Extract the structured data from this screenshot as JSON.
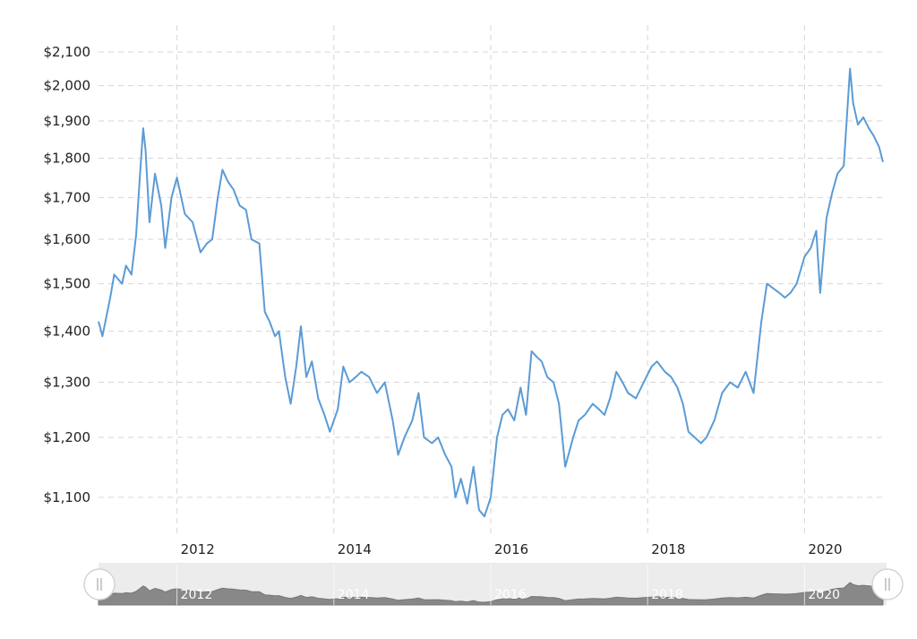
{
  "chart_data": {
    "type": "line",
    "title": "",
    "xlabel": "",
    "ylabel": "",
    "yscale": "log",
    "grid": true,
    "legend": "none",
    "xlim": [
      2011.0,
      2021.0
    ],
    "ylim": [
      1040,
      2150
    ],
    "y_ticks": [
      1100,
      1200,
      1300,
      1400,
      1500,
      1600,
      1700,
      1800,
      1900,
      2000,
      2100
    ],
    "y_tick_labels": [
      "$1,100",
      "$1,200",
      "$1,300",
      "$1,400",
      "$1,500",
      "$1,600",
      "$1,700",
      "$1,800",
      "$1,900",
      "$2,000",
      "$2,100"
    ],
    "x_ticks": [
      2012,
      2014,
      2016,
      2018,
      2020
    ],
    "x_tick_labels": [
      "2012",
      "2014",
      "2016",
      "2018",
      "2020"
    ],
    "series": [
      {
        "name": "",
        "color": "#5b9bd5",
        "x": [
          2011.0,
          2011.05,
          2011.1,
          2011.15,
          2011.2,
          2011.3,
          2011.35,
          2011.42,
          2011.48,
          2011.53,
          2011.57,
          2011.6,
          2011.65,
          2011.72,
          2011.8,
          2011.85,
          2011.93,
          2012.0,
          2012.1,
          2012.2,
          2012.3,
          2012.38,
          2012.45,
          2012.52,
          2012.58,
          2012.65,
          2012.72,
          2012.8,
          2012.88,
          2012.95,
          2013.05,
          2013.12,
          2013.18,
          2013.25,
          2013.3,
          2013.38,
          2013.45,
          2013.52,
          2013.58,
          2013.65,
          2013.72,
          2013.8,
          2013.88,
          2013.95,
          2014.05,
          2014.12,
          2014.2,
          2014.28,
          2014.35,
          2014.45,
          2014.55,
          2014.65,
          2014.75,
          2014.82,
          2014.9,
          2015.0,
          2015.08,
          2015.15,
          2015.25,
          2015.33,
          2015.42,
          2015.5,
          2015.55,
          2015.62,
          2015.7,
          2015.78,
          2015.85,
          2015.92,
          2016.0,
          2016.08,
          2016.15,
          2016.22,
          2016.3,
          2016.38,
          2016.45,
          2016.52,
          2016.58,
          2016.65,
          2016.72,
          2016.8,
          2016.87,
          2016.95,
          2017.05,
          2017.12,
          2017.2,
          2017.3,
          2017.38,
          2017.45,
          2017.52,
          2017.6,
          2017.68,
          2017.75,
          2017.85,
          2017.95,
          2018.05,
          2018.12,
          2018.22,
          2018.3,
          2018.38,
          2018.45,
          2018.52,
          2018.6,
          2018.68,
          2018.75,
          2018.85,
          2018.95,
          2019.05,
          2019.15,
          2019.25,
          2019.35,
          2019.45,
          2019.52,
          2019.6,
          2019.68,
          2019.75,
          2019.82,
          2019.9,
          2020.0,
          2020.08,
          2020.15,
          2020.2,
          2020.28,
          2020.35,
          2020.42,
          2020.5,
          2020.58,
          2020.62,
          2020.68,
          2020.75,
          2020.82,
          2020.88,
          2020.95,
          2021.0
        ],
        "y": [
          1420,
          1390,
          1430,
          1470,
          1520,
          1500,
          1540,
          1520,
          1610,
          1760,
          1880,
          1820,
          1640,
          1760,
          1680,
          1580,
          1700,
          1750,
          1660,
          1640,
          1570,
          1590,
          1600,
          1700,
          1770,
          1740,
          1720,
          1680,
          1670,
          1600,
          1590,
          1440,
          1420,
          1390,
          1400,
          1310,
          1260,
          1330,
          1410,
          1310,
          1340,
          1270,
          1240,
          1210,
          1250,
          1330,
          1300,
          1310,
          1320,
          1310,
          1280,
          1300,
          1230,
          1170,
          1200,
          1230,
          1280,
          1200,
          1190,
          1200,
          1170,
          1150,
          1100,
          1130,
          1090,
          1150,
          1080,
          1070,
          1100,
          1200,
          1240,
          1250,
          1230,
          1290,
          1240,
          1360,
          1350,
          1340,
          1310,
          1300,
          1260,
          1150,
          1200,
          1230,
          1240,
          1260,
          1250,
          1240,
          1270,
          1320,
          1300,
          1280,
          1270,
          1300,
          1330,
          1340,
          1320,
          1310,
          1290,
          1260,
          1210,
          1200,
          1190,
          1200,
          1230,
          1280,
          1300,
          1290,
          1320,
          1280,
          1420,
          1500,
          1490,
          1480,
          1470,
          1480,
          1500,
          1560,
          1580,
          1620,
          1480,
          1650,
          1710,
          1760,
          1780,
          2050,
          1950,
          1890,
          1910,
          1880,
          1860,
          1830,
          1790
        ]
      }
    ],
    "navigator": {
      "x_tick_labels": [
        "2012",
        "2014",
        "2016",
        "2018",
        "2020"
      ]
    }
  }
}
